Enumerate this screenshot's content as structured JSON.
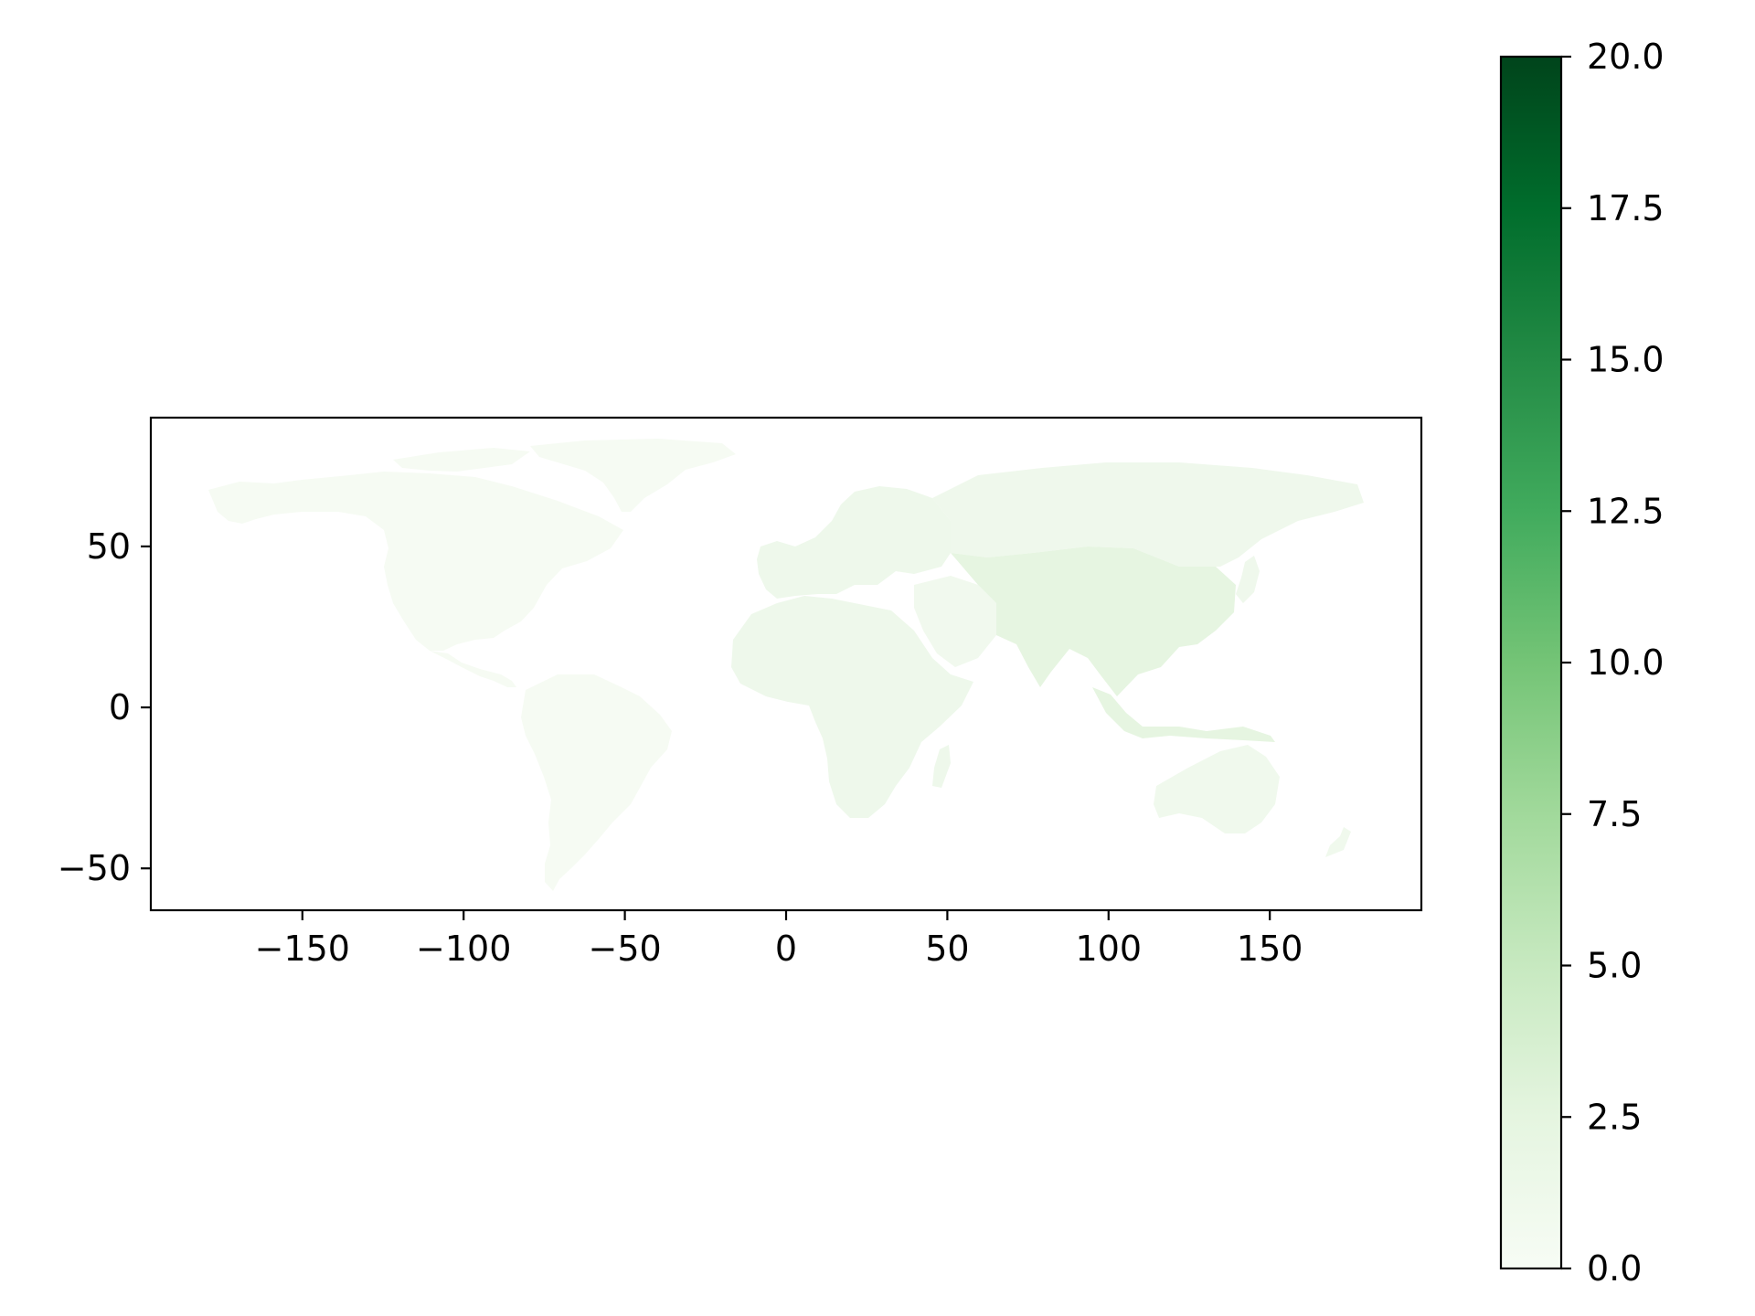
{
  "chart_data": {
    "type": "choropleth",
    "projection": "plate-carree",
    "colormap": "Greens",
    "colormap_stops": [
      "#f7fcf5",
      "#e5f5e0",
      "#c7e9c0",
      "#a1d99b",
      "#74c476",
      "#41ab5d",
      "#238b45",
      "#006d2c",
      "#00441b"
    ],
    "value_range": [
      0,
      20
    ],
    "map_fill_colors": {
      "americas": "#f6fbf3",
      "africa": "#eef8eb",
      "europe": "#eef8eb",
      "middle_east": "#f1f9ee",
      "asia_north": "#eff8ec",
      "asia_central_south": "#e6f5e1",
      "australia": "#f0f9ed"
    },
    "x_axis": {
      "range": [
        -197,
        197
      ],
      "ticks": [
        -150,
        -100,
        -50,
        0,
        50,
        100,
        150
      ],
      "tick_labels": [
        "−150",
        "−100",
        "−50",
        "0",
        "50",
        "100",
        "150"
      ]
    },
    "y_axis": {
      "range": [
        -63,
        90
      ],
      "ticks": [
        -50,
        0,
        50
      ],
      "tick_labels": [
        "−50",
        "0",
        "50"
      ]
    },
    "colorbar": {
      "range": [
        0,
        20
      ],
      "ticks": [
        0,
        2.5,
        5,
        7.5,
        10,
        12.5,
        15,
        17.5,
        20
      ],
      "tick_labels": [
        "0.0",
        "2.5",
        "5.0",
        "7.5",
        "10.0",
        "12.5",
        "15.0",
        "17.5",
        "20.0"
      ]
    },
    "title": "",
    "xlabel": "",
    "ylabel": "",
    "grid": false
  }
}
